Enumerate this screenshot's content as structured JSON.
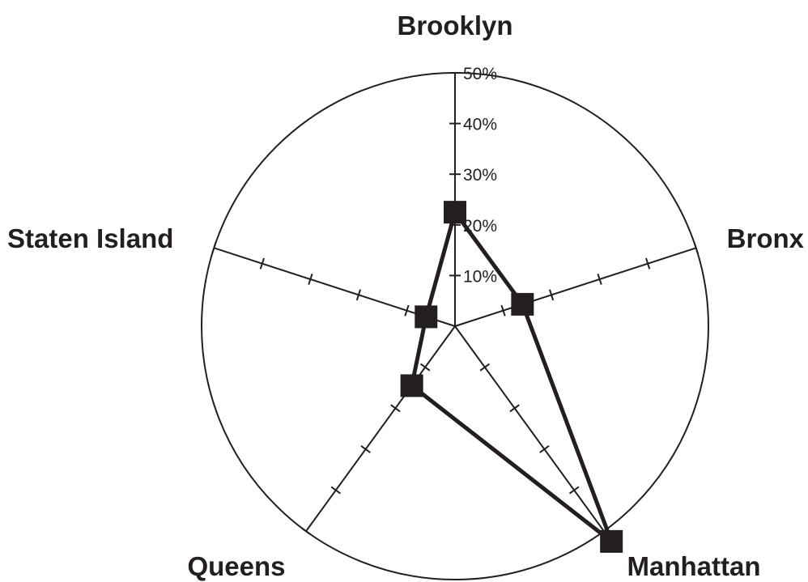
{
  "chart_data": {
    "type": "radar",
    "categories": [
      "Brooklyn",
      "Bronx",
      "Manhattan",
      "Queens",
      "Staten Island"
    ],
    "values": [
      22.5,
      14,
      52.5,
      14.5,
      6
    ],
    "rlim": [
      0,
      50
    ],
    "radial_ticks": [
      10,
      20,
      30,
      40,
      50
    ],
    "radial_tick_labels": [
      "10%",
      "20%",
      "30%",
      "40%",
      "50%"
    ],
    "title": "",
    "grid": false,
    "legend": "none",
    "colors": {
      "line": "#231f20",
      "marker": "#231f20",
      "axis": "#231f20",
      "background": "#ffffff"
    }
  }
}
